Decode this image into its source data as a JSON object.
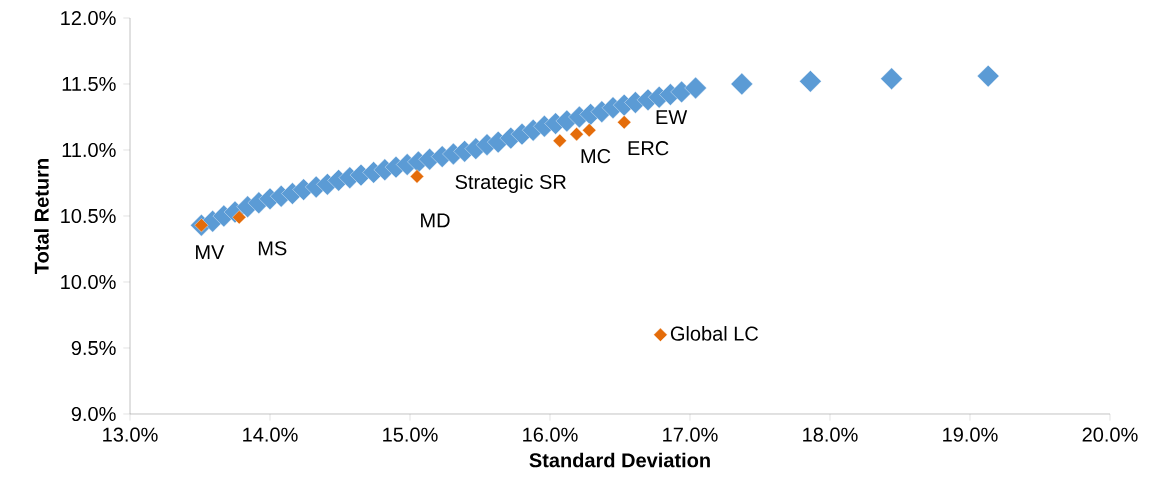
{
  "chart_data": {
    "type": "scatter",
    "xlabel": "Standard Deviation",
    "ylabel": "Total Return",
    "xlim": [
      13,
      20
    ],
    "ylim": [
      9,
      12
    ],
    "xticks": [
      {
        "value": 13,
        "label": "13.0%"
      },
      {
        "value": 14,
        "label": "14.0%"
      },
      {
        "value": 15,
        "label": "15.0%"
      },
      {
        "value": 16,
        "label": "16.0%"
      },
      {
        "value": 17,
        "label": "17.0%"
      },
      {
        "value": 18,
        "label": "18.0%"
      },
      {
        "value": 19,
        "label": "19.0%"
      },
      {
        "value": 20,
        "label": "20.0%"
      }
    ],
    "yticks": [
      {
        "value": 9,
        "label": "9.0%"
      },
      {
        "value": 9.5,
        "label": "9.5%"
      },
      {
        "value": 10,
        "label": "10.0%"
      },
      {
        "value": 10.5,
        "label": "10.5%"
      },
      {
        "value": 11,
        "label": "11.0%"
      },
      {
        "value": 11.5,
        "label": "11.5%"
      },
      {
        "value": 12,
        "label": "12.0%"
      }
    ],
    "grid": false,
    "legend": "bottom right",
    "marker": "diamond",
    "series": [
      {
        "color": "#5b9bd5",
        "x": [
          13.51,
          13.59,
          13.67,
          13.75,
          13.84,
          13.92,
          14.0,
          14.08,
          14.16,
          14.24,
          14.33,
          14.41,
          14.49,
          14.57,
          14.65,
          14.74,
          14.82,
          14.9,
          14.98,
          15.06,
          15.14,
          15.23,
          15.31,
          15.39,
          15.47,
          15.55,
          15.63,
          15.72,
          15.8,
          15.88,
          15.96,
          16.04,
          16.12,
          16.21,
          16.29,
          16.37,
          16.45,
          16.53,
          16.61,
          16.7,
          16.78,
          16.86,
          16.94,
          17.04,
          17.37,
          17.86,
          18.44,
          19.13
        ],
        "values": [
          10.43,
          10.46,
          10.5,
          10.53,
          10.57,
          10.6,
          10.63,
          10.65,
          10.67,
          10.7,
          10.72,
          10.74,
          10.77,
          10.79,
          10.81,
          10.83,
          10.85,
          10.87,
          10.89,
          10.91,
          10.93,
          10.95,
          10.97,
          10.99,
          11.01,
          11.04,
          11.06,
          11.09,
          11.12,
          11.15,
          11.18,
          11.2,
          11.22,
          11.25,
          11.27,
          11.29,
          11.32,
          11.34,
          11.36,
          11.38,
          11.4,
          11.42,
          11.44,
          11.47,
          11.5,
          11.52,
          11.54,
          11.56
        ]
      },
      {
        "name": "Global LC",
        "color": "#e46c0a",
        "x": [
          13.51,
          13.78,
          15.05,
          16.07,
          16.19,
          16.28,
          16.53
        ],
        "values": [
          10.43,
          10.49,
          10.8,
          11.07,
          11.12,
          11.15,
          11.21
        ]
      }
    ],
    "annotations": [
      {
        "text": "MV",
        "x": 13.51,
        "y": 10.43
      },
      {
        "text": "MS",
        "x": 13.78,
        "y": 10.49
      },
      {
        "text": "MD",
        "x": 15.05,
        "y": 10.8
      },
      {
        "text": "Strategic SR",
        "x": 16.07,
        "y": 11.07
      },
      {
        "text": "MC",
        "x": 16.19,
        "y": 11.12
      },
      {
        "text": "ERC",
        "x": 16.28,
        "y": 11.15
      },
      {
        "text": "EW",
        "x": 16.53,
        "y": 11.21
      }
    ]
  }
}
